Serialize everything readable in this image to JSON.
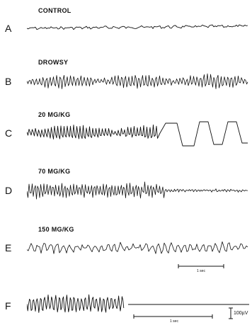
{
  "panels": [
    {
      "letter": "A",
      "label": "CONTROL"
    },
    {
      "letter": "B",
      "label": "DROWSY"
    },
    {
      "letter": "C",
      "label": "20 MG/KG"
    },
    {
      "letter": "D",
      "label": "70 MG/KG"
    },
    {
      "letter": "E",
      "label": "150 MG/KG"
    },
    {
      "letter": "F",
      "label": ""
    }
  ],
  "scale_bars": {
    "time_label_e": "1 sec",
    "time_label_f": "1 sec",
    "voltage_label": "100µV"
  }
}
